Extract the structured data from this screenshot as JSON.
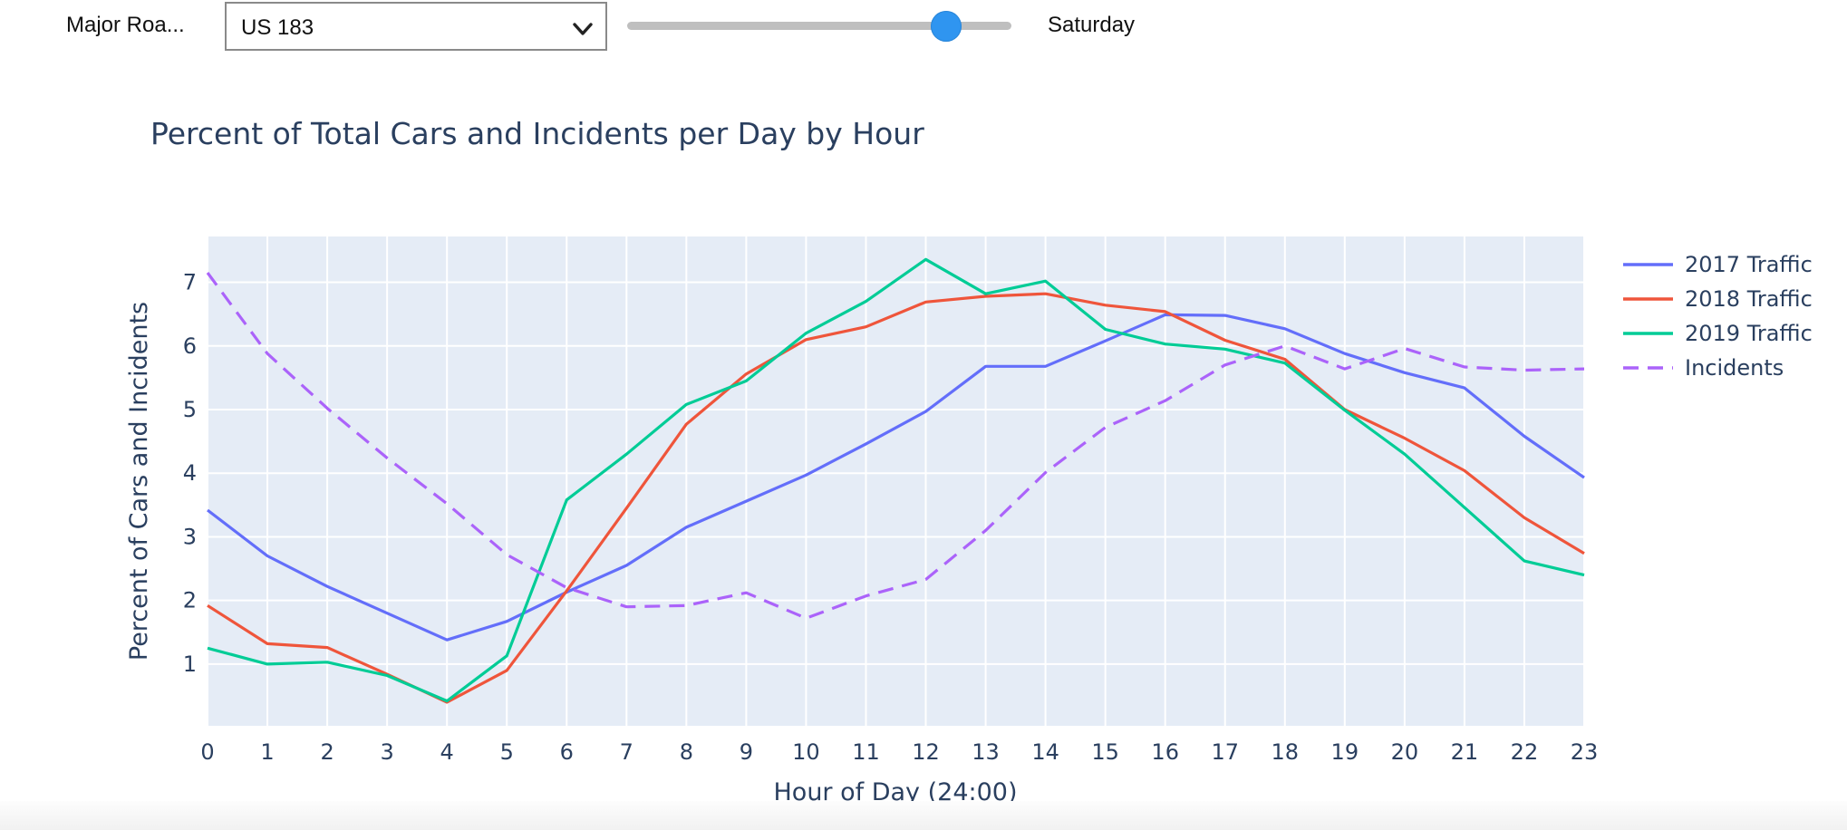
{
  "controls": {
    "road_label": "Major Roa...",
    "road_selected": "US 183",
    "day_label": "Saturday",
    "day_slider_fraction": 0.83
  },
  "colors": {
    "plot_bg": "#e5ecf6",
    "grid": "#ffffff",
    "text": "#2a3f5f",
    "slider_thumb": "#2f95f0"
  },
  "chart_data": {
    "type": "line",
    "title": "Percent of Total Cars and Incidents per Day by Hour",
    "xlabel": "Hour of Day (24:00)",
    "ylabel": "Percent of Cars and Incidents",
    "x": [
      0,
      1,
      2,
      3,
      4,
      5,
      6,
      7,
      8,
      9,
      10,
      11,
      12,
      13,
      14,
      15,
      16,
      17,
      18,
      19,
      20,
      21,
      22,
      23
    ],
    "xlim": [
      0,
      23
    ],
    "ylim": [
      0.03,
      7.72
    ],
    "yticks": [
      1,
      2,
      3,
      4,
      5,
      6,
      7
    ],
    "grid": true,
    "legend_position": "top-right",
    "series": [
      {
        "name": "2017 Traffic",
        "color": "#636efa",
        "dash": "solid",
        "values": [
          3.42,
          2.7,
          2.22,
          1.8,
          1.38,
          1.67,
          2.13,
          2.55,
          3.15,
          3.56,
          3.97,
          4.46,
          4.97,
          5.68,
          5.68,
          6.08,
          6.49,
          6.48,
          6.27,
          5.88,
          5.58,
          5.34,
          4.58,
          3.93
        ]
      },
      {
        "name": "2018 Traffic",
        "color": "#ef553b",
        "dash": "solid",
        "values": [
          1.92,
          1.32,
          1.26,
          0.84,
          0.4,
          0.9,
          2.15,
          3.45,
          4.77,
          5.56,
          6.1,
          6.3,
          6.69,
          6.78,
          6.82,
          6.64,
          6.54,
          6.09,
          5.79,
          5.0,
          4.55,
          4.04,
          3.3,
          2.74
        ]
      },
      {
        "name": "2019 Traffic",
        "color": "#00cc96",
        "dash": "solid",
        "values": [
          1.25,
          1.0,
          1.03,
          0.82,
          0.42,
          1.13,
          3.58,
          4.3,
          5.08,
          5.45,
          6.2,
          6.7,
          7.36,
          6.82,
          7.02,
          6.26,
          6.03,
          5.95,
          5.73,
          4.99,
          4.3,
          3.46,
          2.62,
          2.4
        ]
      },
      {
        "name": "Incidents",
        "color": "#ab63fa",
        "dash": "dash",
        "values": [
          7.15,
          5.88,
          5.02,
          4.24,
          3.52,
          2.72,
          2.2,
          1.9,
          1.92,
          2.12,
          1.72,
          2.07,
          2.33,
          3.1,
          4.01,
          4.72,
          5.14,
          5.7,
          6.0,
          5.64,
          5.96,
          5.67,
          5.62,
          5.64
        ]
      }
    ]
  }
}
